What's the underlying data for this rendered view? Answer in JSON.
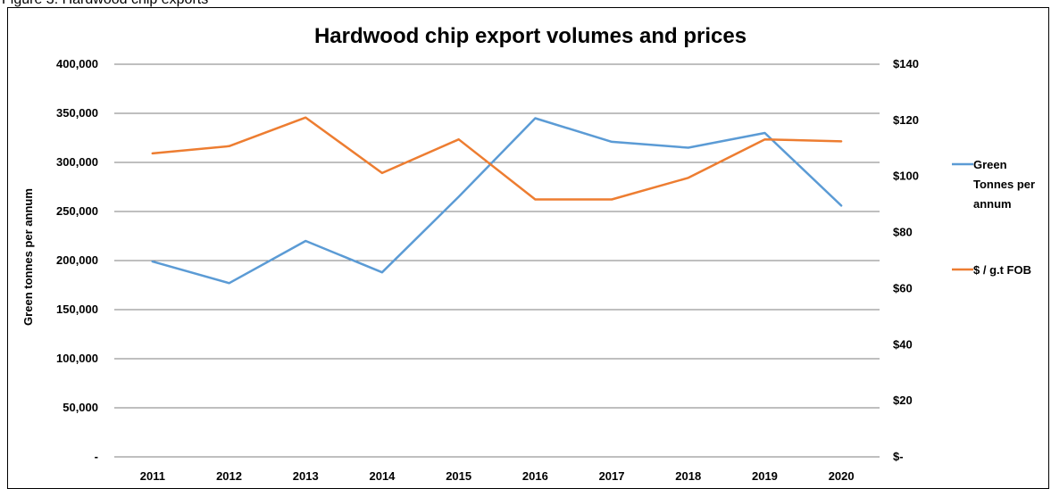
{
  "caption": "Figure 3: Hardwood chip exports",
  "chart_data": {
    "type": "line",
    "title": "Hardwood chip export volumes and prices",
    "ylabel": "Green tonnes per annum",
    "y2label": "",
    "categories": [
      "2011",
      "2012",
      "2013",
      "2014",
      "2015",
      "2016",
      "2017",
      "2018",
      "2019",
      "2020"
    ],
    "ylim": [
      0,
      400000
    ],
    "y2lim": [
      0,
      140
    ],
    "y_ticks": [
      "-",
      "50,000",
      "100,000",
      "150,000",
      "200,000",
      "250,000",
      "300,000",
      "350,000",
      "400,000"
    ],
    "y2_ticks": [
      "$-",
      "$20",
      "$40",
      "$60",
      "$80",
      "$100",
      "$120",
      "$140"
    ],
    "grid": true,
    "legend_position": "right",
    "series": [
      {
        "name": "Green Tonnes per annum",
        "legend_lines": [
          "Green",
          "Tonnes per",
          "annum"
        ],
        "axis": "left",
        "color": "#5B9BD5",
        "values": [
          199000,
          177000,
          220000,
          188000,
          265000,
          345000,
          321000,
          315000,
          330000,
          256000
        ]
      },
      {
        "name": "$ / g.t FOB",
        "legend_lines": [
          "$ / g.t FOB"
        ],
        "axis": "right",
        "color": "#ED7D31",
        "values": [
          108.2,
          110.8,
          121,
          101.2,
          113.2,
          91.8,
          91.8,
          99.5,
          113.2,
          112.5
        ]
      }
    ]
  }
}
